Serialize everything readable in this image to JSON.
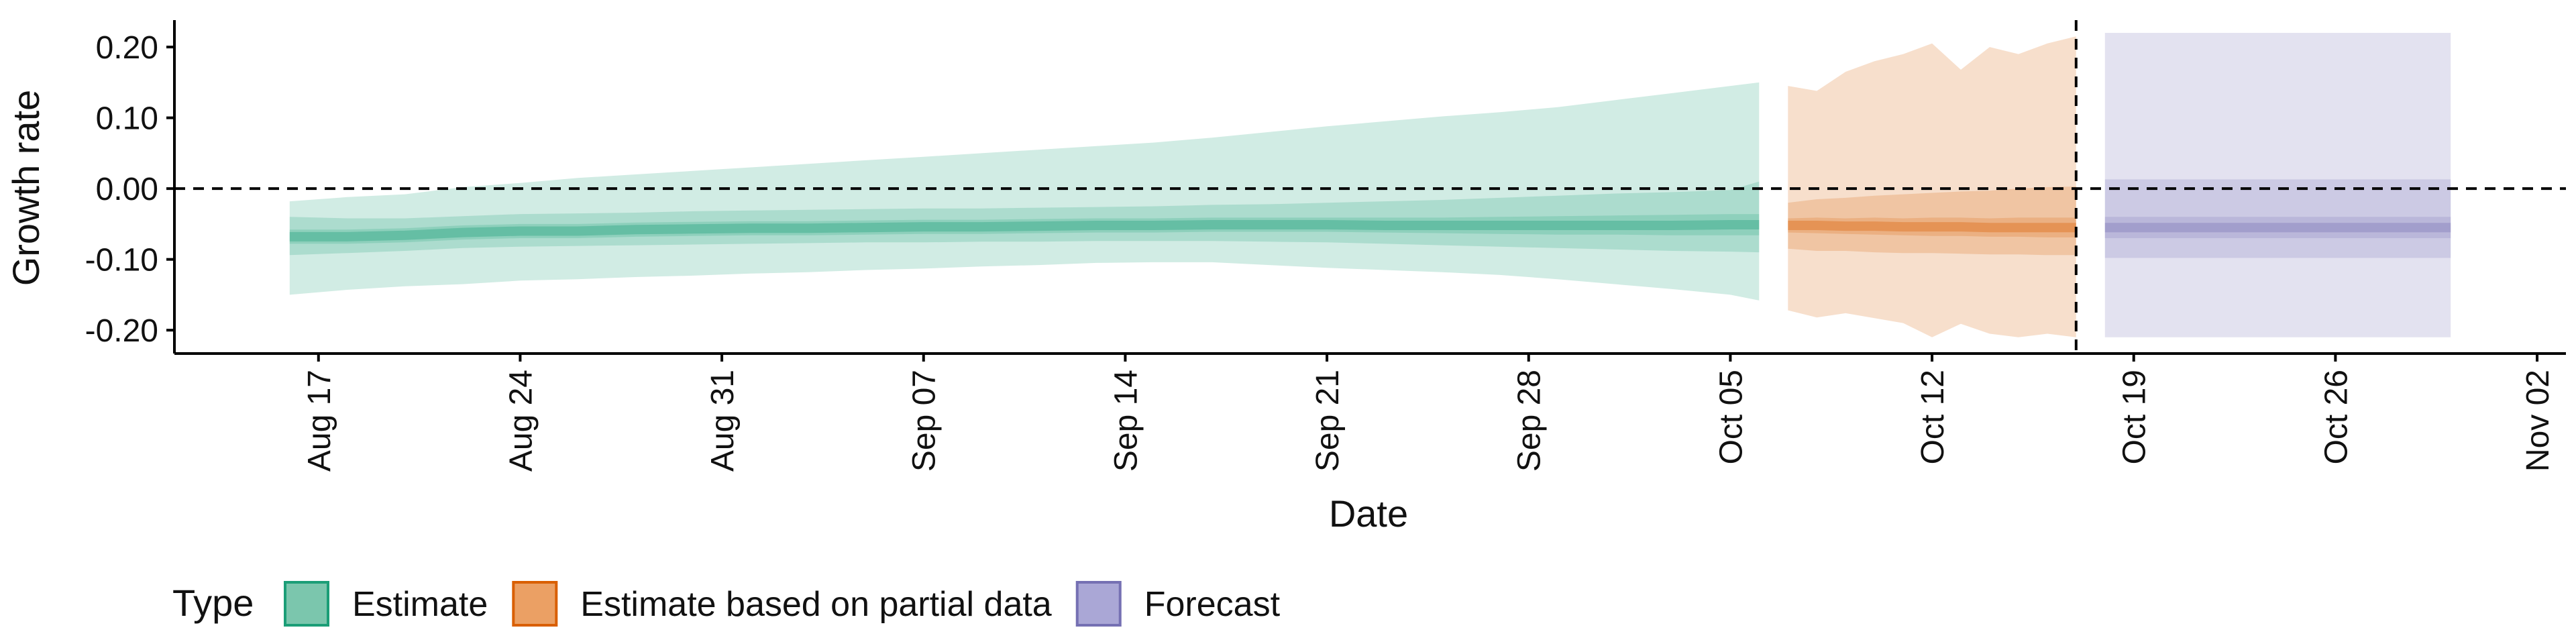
{
  "chart_data": {
    "type": "area",
    "title": "",
    "xlabel": "Date",
    "ylabel": "Growth rate",
    "x_ticks": [
      "Aug 17",
      "Aug 24",
      "Aug 31",
      "Sep 07",
      "Sep 14",
      "Sep 21",
      "Sep 28",
      "Oct 05",
      "Oct 12",
      "Oct 19",
      "Oct 26",
      "Nov 02"
    ],
    "x_tick_dates": [
      "2020-08-17",
      "2020-08-24",
      "2020-08-31",
      "2020-09-07",
      "2020-09-14",
      "2020-09-21",
      "2020-09-28",
      "2020-10-05",
      "2020-10-12",
      "2020-10-19",
      "2020-10-26",
      "2020-11-02"
    ],
    "x_range": [
      "2020-08-12",
      "2020-11-03"
    ],
    "y_ticks": [
      "0.20",
      "0.10",
      "0.00",
      "-0.10",
      "-0.20"
    ],
    "y_tick_values": [
      0.2,
      0.1,
      0.0,
      -0.1,
      -0.2
    ],
    "ylim": [
      -0.233,
      0.238
    ],
    "reference_lines": [
      {
        "orientation": "horizontal",
        "value": 0.0,
        "style": "dashed"
      },
      {
        "orientation": "vertical",
        "value": "2020-10-17",
        "style": "dashed"
      }
    ],
    "legend": {
      "title": "Type",
      "position": "bottom-left",
      "entries": [
        {
          "label": "Estimate",
          "fill": "#7bc6ad",
          "stroke": "#1b9e77"
        },
        {
          "label": "Estimate based on partial data",
          "fill": "#eba064",
          "stroke": "#d95f02"
        },
        {
          "label": "Forecast",
          "fill": "#aaa7d6",
          "stroke": "#7570b3"
        }
      ]
    },
    "series": [
      {
        "name": "Estimate",
        "color": "#1b9e77",
        "x": [
          "2020-08-16",
          "2020-08-18",
          "2020-08-20",
          "2020-08-22",
          "2020-08-24",
          "2020-08-26",
          "2020-08-28",
          "2020-08-30",
          "2020-09-01",
          "2020-09-03",
          "2020-09-05",
          "2020-09-07",
          "2020-09-09",
          "2020-09-11",
          "2020-09-13",
          "2020-09-15",
          "2020-09-17",
          "2020-09-19",
          "2020-09-21",
          "2020-09-23",
          "2020-09-25",
          "2020-09-27",
          "2020-09-29",
          "2020-10-01",
          "2020-10-03",
          "2020-10-05",
          "2020-10-06"
        ],
        "median": [
          -0.068,
          -0.068,
          -0.066,
          -0.062,
          -0.06,
          -0.06,
          -0.058,
          -0.057,
          -0.056,
          -0.056,
          -0.055,
          -0.054,
          -0.054,
          -0.053,
          -0.052,
          -0.052,
          -0.051,
          -0.051,
          -0.051,
          -0.052,
          -0.052,
          -0.052,
          -0.052,
          -0.052,
          -0.052,
          -0.051,
          -0.051
        ],
        "inner": {
          "lower": [
            -0.078,
            -0.078,
            -0.076,
            -0.072,
            -0.07,
            -0.07,
            -0.068,
            -0.067,
            -0.066,
            -0.066,
            -0.065,
            -0.064,
            -0.064,
            -0.063,
            -0.062,
            -0.062,
            -0.061,
            -0.061,
            -0.061,
            -0.062,
            -0.063,
            -0.064,
            -0.065,
            -0.065,
            -0.066,
            -0.066,
            -0.066
          ],
          "upper": [
            -0.058,
            -0.058,
            -0.056,
            -0.052,
            -0.05,
            -0.05,
            -0.048,
            -0.047,
            -0.046,
            -0.046,
            -0.045,
            -0.044,
            -0.044,
            -0.043,
            -0.042,
            -0.042,
            -0.041,
            -0.041,
            -0.041,
            -0.041,
            -0.041,
            -0.04,
            -0.039,
            -0.038,
            -0.037,
            -0.036,
            -0.036
          ]
        },
        "mid": {
          "lower": [
            -0.094,
            -0.091,
            -0.088,
            -0.084,
            -0.082,
            -0.081,
            -0.08,
            -0.079,
            -0.078,
            -0.077,
            -0.076,
            -0.076,
            -0.075,
            -0.075,
            -0.074,
            -0.074,
            -0.074,
            -0.075,
            -0.076,
            -0.078,
            -0.08,
            -0.082,
            -0.084,
            -0.086,
            -0.088,
            -0.089,
            -0.09
          ],
          "upper": [
            -0.04,
            -0.042,
            -0.042,
            -0.039,
            -0.036,
            -0.035,
            -0.034,
            -0.032,
            -0.031,
            -0.03,
            -0.029,
            -0.028,
            -0.028,
            -0.027,
            -0.026,
            -0.025,
            -0.023,
            -0.022,
            -0.02,
            -0.018,
            -0.016,
            -0.013,
            -0.01,
            -0.007,
            -0.005,
            -0.002,
            0.01
          ]
        },
        "outer": {
          "lower": [
            -0.15,
            -0.143,
            -0.138,
            -0.135,
            -0.13,
            -0.128,
            -0.125,
            -0.123,
            -0.12,
            -0.118,
            -0.115,
            -0.113,
            -0.11,
            -0.108,
            -0.105,
            -0.104,
            -0.104,
            -0.108,
            -0.112,
            -0.115,
            -0.118,
            -0.122,
            -0.128,
            -0.135,
            -0.142,
            -0.15,
            -0.158
          ],
          "upper": [
            -0.018,
            -0.012,
            -0.008,
            0.002,
            0.008,
            0.015,
            0.02,
            0.025,
            0.03,
            0.035,
            0.04,
            0.045,
            0.05,
            0.055,
            0.06,
            0.065,
            0.072,
            0.08,
            0.088,
            0.095,
            0.102,
            0.108,
            0.115,
            0.125,
            0.135,
            0.145,
            0.15
          ]
        }
      },
      {
        "name": "Estimate based on partial data",
        "color": "#d95f02",
        "x": [
          "2020-10-07",
          "2020-10-08",
          "2020-10-09",
          "2020-10-10",
          "2020-10-11",
          "2020-10-12",
          "2020-10-13",
          "2020-10-14",
          "2020-10-15",
          "2020-10-16",
          "2020-10-17"
        ],
        "median": [
          -0.052,
          -0.052,
          -0.053,
          -0.053,
          -0.054,
          -0.054,
          -0.054,
          -0.055,
          -0.055,
          -0.055,
          -0.055
        ],
        "inner": {
          "lower": [
            -0.062,
            -0.063,
            -0.064,
            -0.065,
            -0.066,
            -0.067,
            -0.067,
            -0.068,
            -0.068,
            -0.069,
            -0.069
          ],
          "upper": [
            -0.042,
            -0.041,
            -0.042,
            -0.041,
            -0.042,
            -0.041,
            -0.041,
            -0.042,
            -0.041,
            -0.041,
            -0.041
          ]
        },
        "mid": {
          "lower": [
            -0.085,
            -0.088,
            -0.088,
            -0.09,
            -0.091,
            -0.091,
            -0.092,
            -0.093,
            -0.093,
            -0.094,
            -0.094
          ],
          "upper": [
            -0.02,
            -0.015,
            -0.013,
            -0.01,
            -0.008,
            -0.006,
            -0.004,
            -0.003,
            0.0,
            0.002,
            0.003
          ]
        },
        "outer": {
          "lower": [
            -0.172,
            -0.182,
            -0.176,
            -0.183,
            -0.19,
            -0.21,
            -0.191,
            -0.205,
            -0.21,
            -0.205,
            -0.21
          ],
          "upper": [
            0.145,
            0.138,
            0.165,
            0.18,
            0.19,
            0.205,
            0.168,
            0.2,
            0.19,
            0.205,
            0.215
          ]
        }
      },
      {
        "name": "Forecast",
        "color": "#7570b3",
        "x": [
          "2020-10-18",
          "2020-10-30"
        ],
        "median": [
          -0.055,
          -0.055
        ],
        "inner": {
          "lower": [
            -0.07,
            -0.07
          ],
          "upper": [
            -0.04,
            -0.04
          ]
        },
        "mid": {
          "lower": [
            -0.098,
            -0.098
          ],
          "upper": [
            0.013,
            0.013
          ]
        },
        "outer": {
          "lower": [
            -0.21,
            -0.21
          ],
          "upper": [
            0.22,
            0.22
          ]
        }
      }
    ]
  }
}
